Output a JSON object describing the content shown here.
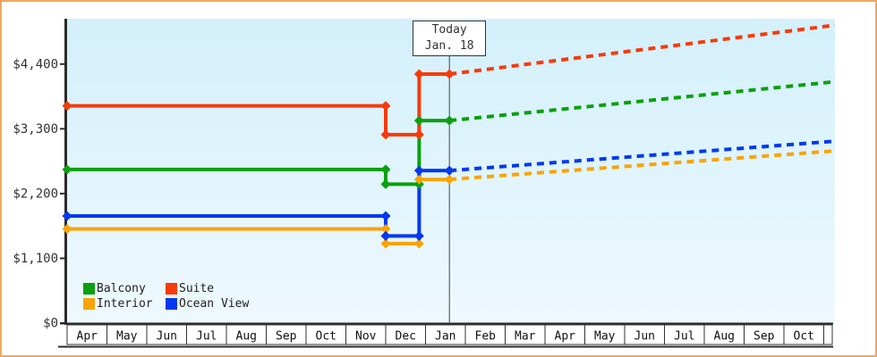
{
  "frame": {
    "border_color": "#f0a85f",
    "background": "#ffffff"
  },
  "chart_data": {
    "type": "line",
    "title": "",
    "description": "Cruise cabin price history by cabin type with solid lines up to today and dotted projected prices afterwards",
    "x_months": [
      "Apr",
      "May",
      "Jun",
      "Jul",
      "Aug",
      "Sep",
      "Oct",
      "Nov",
      "Dec",
      "Jan",
      "Feb",
      "Mar",
      "Apr",
      "May",
      "Jun",
      "Jul",
      "Aug",
      "Sep",
      "Oct"
    ],
    "x_unit": "months since April (fractional values = day within month)",
    "xlim": [
      0,
      19.28
    ],
    "ylim": [
      0,
      5170
    ],
    "grid": "off",
    "y_ticks": [
      {
        "value": 0,
        "label": "$0"
      },
      {
        "value": 1100,
        "label": "$1,100"
      },
      {
        "value": 2200,
        "label": "$2,200"
      },
      {
        "value": 3300,
        "label": "$3,300"
      },
      {
        "value": 4400,
        "label": "$4,400"
      }
    ],
    "today": {
      "x": 9.6,
      "label_line1": "Today",
      "label_line2": "Jan. 18"
    },
    "series": [
      {
        "name": "Balcony",
        "color": "#0aa00e",
        "solid_points": [
          [
            0,
            2610
          ],
          [
            8,
            2610
          ],
          [
            8,
            2360
          ],
          [
            8.84,
            2360
          ],
          [
            8.84,
            3440
          ],
          [
            9.6,
            3440
          ]
        ],
        "projected_points": [
          [
            9.6,
            3440
          ],
          [
            19.28,
            4100
          ]
        ],
        "summary": {
          "initial": 2610,
          "december_dip": 2360,
          "current": 3440,
          "projected_end": 4100
        }
      },
      {
        "name": "Interior",
        "color": "#f9a306",
        "solid_points": [
          [
            0,
            1600
          ],
          [
            8,
            1600
          ],
          [
            8,
            1350
          ],
          [
            8.84,
            1350
          ],
          [
            8.84,
            2440
          ],
          [
            9.6,
            2440
          ]
        ],
        "projected_points": [
          [
            9.6,
            2440
          ],
          [
            19.28,
            2925
          ]
        ],
        "summary": {
          "initial": 1600,
          "december_dip": 1350,
          "current": 2440,
          "projected_end": 2925
        }
      },
      {
        "name": "Ocean View",
        "color": "#0339ee",
        "solid_points": [
          [
            0,
            1820
          ],
          [
            8,
            1820
          ],
          [
            8,
            1480
          ],
          [
            8.84,
            1480
          ],
          [
            8.84,
            2590
          ],
          [
            9.6,
            2590
          ]
        ],
        "projected_points": [
          [
            9.6,
            2590
          ],
          [
            19.28,
            3090
          ]
        ],
        "summary": {
          "initial": 1820,
          "december_dip": 1480,
          "current": 2590,
          "projected_end": 3090
        }
      },
      {
        "name": "Suite",
        "color": "#f63a0a",
        "solid_points": [
          [
            0,
            3690
          ],
          [
            8,
            3690
          ],
          [
            8,
            3200
          ],
          [
            8.84,
            3200
          ],
          [
            8.84,
            4230
          ],
          [
            9.6,
            4230
          ]
        ],
        "projected_points": [
          [
            9.6,
            4230
          ],
          [
            19.28,
            5060
          ]
        ],
        "summary": {
          "initial": 3690,
          "december_dip": 3200,
          "current": 4230,
          "projected_end": 5060
        }
      }
    ],
    "legend": {
      "position": "bottom-left",
      "items": [
        {
          "label": "Balcony",
          "color": "#0aa00e"
        },
        {
          "label": "Suite",
          "color": "#f63a0a"
        },
        {
          "label": "Interior",
          "color": "#f9a306"
        },
        {
          "label": "Ocean View",
          "color": "#0339ee"
        }
      ]
    },
    "styles": {
      "plot_bg_top": "#d3f0fb",
      "plot_bg_bottom": "#eef9fe",
      "axis_color": "#2b2b2b",
      "tick_label_color": "#333333",
      "month_label_color": "#111111",
      "today_line_color": "#444444",
      "line_width": 4,
      "dash_pattern": "8 6",
      "marker": "diamond"
    }
  }
}
